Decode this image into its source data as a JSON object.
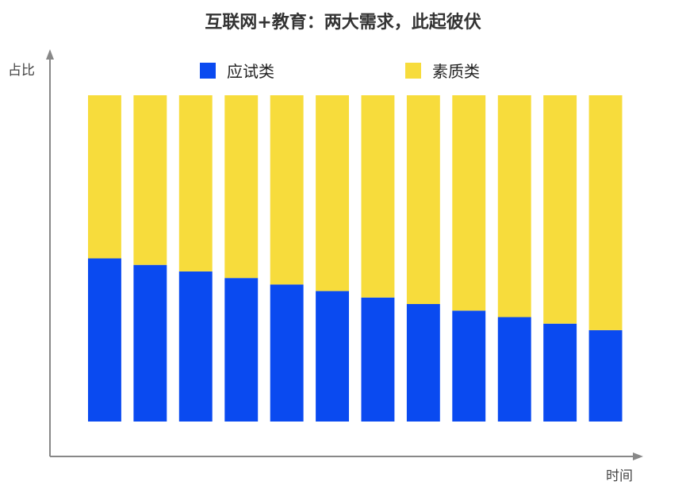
{
  "chart_data": {
    "type": "bar",
    "stacked": true,
    "title": "互联网+教育：两大需求，此起彼伏",
    "xlabel": "时间",
    "ylabel": "占比",
    "ylim": [
      0,
      1
    ],
    "categories": [
      "",
      "",
      "",
      "",
      "",
      "",
      "",
      "",
      "",
      "",
      "",
      ""
    ],
    "series": [
      {
        "name": "应试类",
        "color": "#0a4af0",
        "values": [
          0.5,
          0.48,
          0.46,
          0.44,
          0.42,
          0.4,
          0.38,
          0.36,
          0.34,
          0.32,
          0.3,
          0.28
        ]
      },
      {
        "name": "素质类",
        "color": "#f7dc3c",
        "values": [
          0.5,
          0.52,
          0.54,
          0.56,
          0.58,
          0.6,
          0.62,
          0.64,
          0.66,
          0.68,
          0.7,
          0.72
        ]
      }
    ],
    "legend_position": "top",
    "grid": false
  },
  "colors": {
    "axis": "#888888",
    "title": "#333333"
  }
}
